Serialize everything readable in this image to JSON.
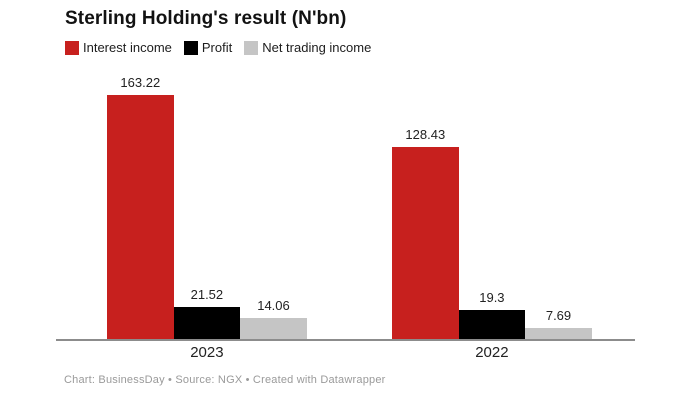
{
  "header": {
    "title": "Sterling Holding's result (N'bn)"
  },
  "legend": {
    "items": [
      {
        "label": "Interest income",
        "color": "#c7201e"
      },
      {
        "label": "Profit",
        "color": "#000000"
      },
      {
        "label": "Net trading income",
        "color": "#c5c5c5"
      }
    ]
  },
  "footer": {
    "text": "Chart: BusinessDay • Source: NGX • Created with Datawrapper"
  },
  "colors": {
    "axis_line": "#8c8c8c",
    "background": "#ffffff"
  },
  "chart_data": {
    "type": "bar",
    "title": "Sterling Holding's result (N'bn)",
    "categories": [
      "2023",
      "2022"
    ],
    "series": [
      {
        "name": "Interest income",
        "color": "#c7201e",
        "values": [
          163.22,
          128.43
        ]
      },
      {
        "name": "Profit",
        "color": "#000000",
        "values": [
          21.52,
          19.3
        ]
      },
      {
        "name": "Net trading income",
        "color": "#c5c5c5",
        "values": [
          14.06,
          7.69
        ]
      }
    ],
    "value_labels": [
      [
        "163.22",
        "21.52",
        "14.06"
      ],
      [
        "128.43",
        "19.3",
        "7.69"
      ]
    ],
    "xlabel": "",
    "ylabel": "",
    "ylim": [
      0,
      170
    ],
    "grid": false,
    "legend_position": "top"
  }
}
